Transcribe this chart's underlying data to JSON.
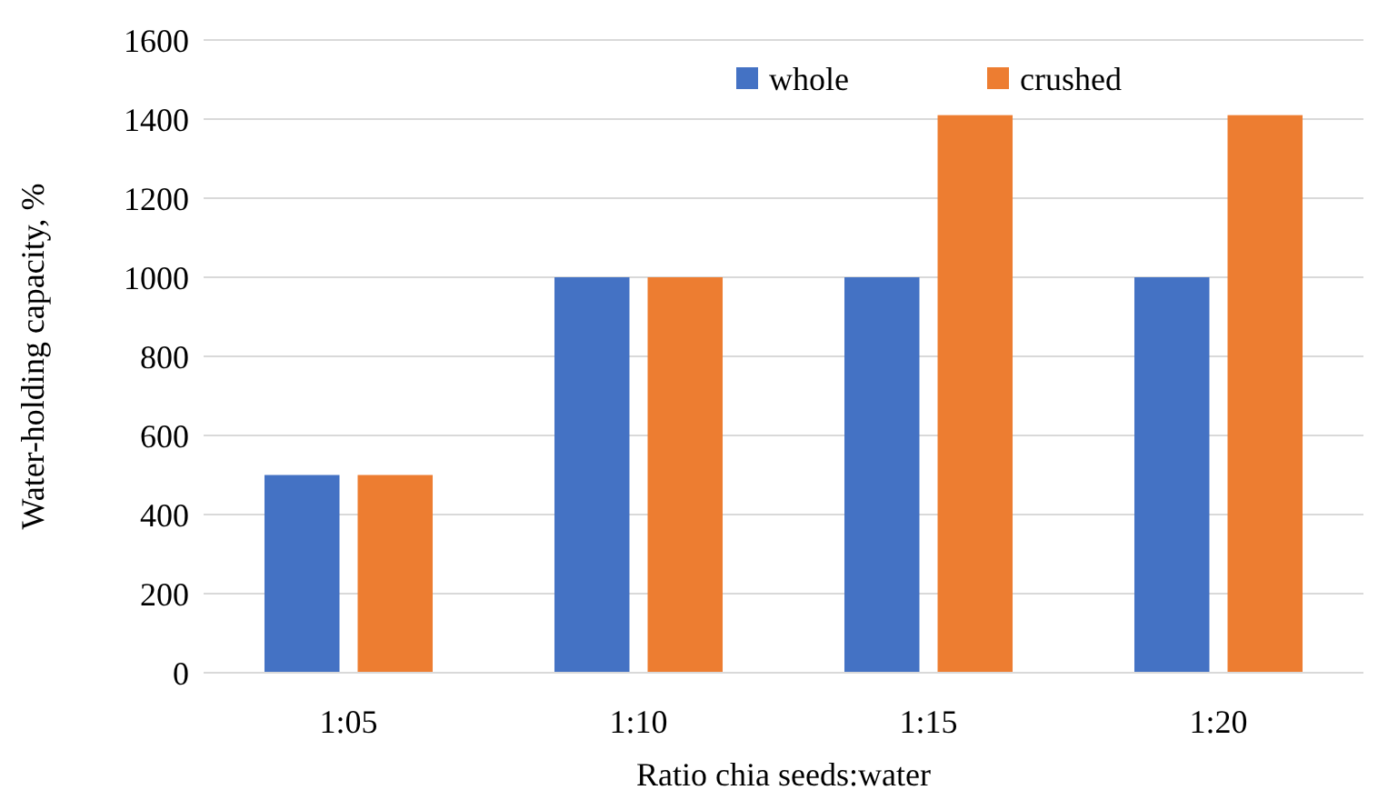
{
  "chart_data": {
    "type": "bar",
    "xlabel": "Ratio chia seeds:water",
    "ylabel": "Water-holding capacity, %",
    "categories": [
      "1:05",
      "1:10",
      "1:15",
      "1:20"
    ],
    "series": [
      {
        "name": "whole",
        "color": "#4472c4",
        "values": [
          500,
          1000,
          1000,
          1000
        ]
      },
      {
        "name": "crushed",
        "color": "#ed7d31",
        "values": [
          500,
          1000,
          1410,
          1410
        ]
      }
    ],
    "ylim": [
      0,
      1600
    ],
    "yticks": [
      0,
      200,
      400,
      600,
      800,
      1000,
      1200,
      1400,
      1600
    ],
    "grid": "y",
    "legend": "top"
  }
}
